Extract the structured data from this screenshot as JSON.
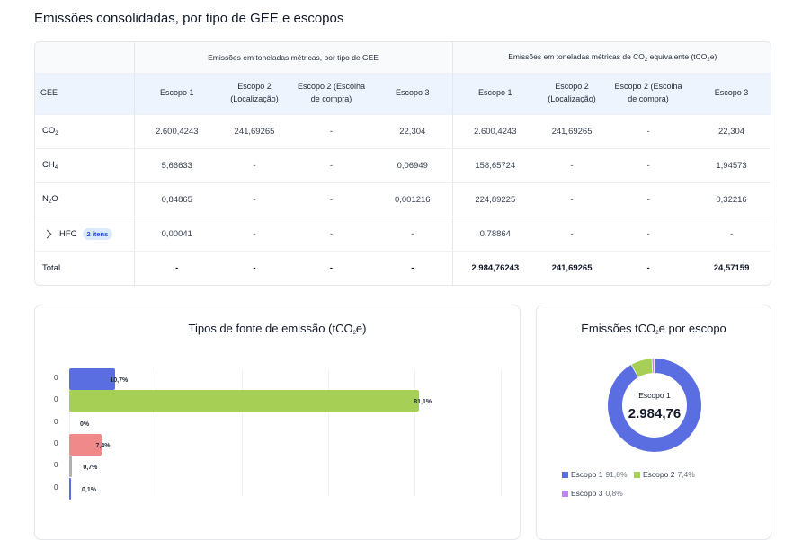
{
  "page_title": "Emissões consolidadas, por tipo de GEE e escopos",
  "table": {
    "group1_title": "Emissões em toneladas métricas, por tipo de GEE",
    "group2_title_a": "Emissões em toneladas métricas de CO",
    "group2_title_sub": "2",
    "group2_title_b": " equivalente (tCO",
    "group2_title_sub2": "2",
    "group2_title_c": "e)",
    "gee_header": "GEE",
    "headers": {
      "escopo1": "Escopo 1",
      "escopo2_loc_a": "Escopo 2",
      "escopo2_loc_b": "(Localização)",
      "escopo2_comp_a": "Escopo 2 (Escolha",
      "escopo2_comp_b": "de compra)",
      "escopo3": "Escopo 3"
    },
    "rows": [
      {
        "gas": "CO",
        "sub": "2",
        "tail": "",
        "v": [
          "2.600,4243",
          "241,69265",
          "-",
          "22,304",
          "2.600,4243",
          "241,69265",
          "-",
          "22,304"
        ]
      },
      {
        "gas": "CH",
        "sub": "4",
        "tail": "",
        "v": [
          "5,66633",
          "-",
          "-",
          "0,06949",
          "158,65724",
          "-",
          "-",
          "1,94573"
        ]
      },
      {
        "gas": "N",
        "sub": "2",
        "tail": "O",
        "v": [
          "0,84865",
          "-",
          "-",
          "0,001216",
          "224,89225",
          "-",
          "-",
          "0,32216"
        ]
      }
    ],
    "hfc": {
      "label": "HFC",
      "badge": "2 itens",
      "v": [
        "0,00041",
        "-",
        "-",
        "-",
        "0,78864",
        "-",
        "-",
        "-"
      ]
    },
    "total": {
      "label": "Total",
      "v": [
        "-",
        "-",
        "-",
        "-",
        "2.984,76243",
        "241,69265",
        "-",
        "24,57159"
      ]
    }
  },
  "bar_chart": {
    "title_a": "Tipos de fonte de emissão (tCO",
    "title_sub": "2",
    "title_b": "e)",
    "bars": [
      {
        "ylabel": "0",
        "pct_label": "10,7%",
        "value": 10.7,
        "color": "#5b6ee1"
      },
      {
        "ylabel": "0",
        "pct_label": "81,1%",
        "value": 81.1,
        "color": "#a6d055"
      },
      {
        "ylabel": "0",
        "pct_label": "0%",
        "value": 0,
        "color": "#e4572e"
      },
      {
        "ylabel": "0",
        "pct_label": "7,4%",
        "value": 7.4,
        "color": "#f08a8a"
      },
      {
        "ylabel": "0",
        "pct_label": "0,7%",
        "value": 0.7,
        "color": "#b0b0b0"
      },
      {
        "ylabel": "0",
        "pct_label": "0,1%",
        "value": 0.1,
        "color": "#5b6ee1"
      }
    ]
  },
  "donut": {
    "title_a": "Emissões tCO",
    "title_sub": "2",
    "title_b": "e por escopo",
    "center_label": "Escopo 1",
    "center_value": "2.984,76",
    "slices": [
      {
        "name": "Escopo 1",
        "pct_label": "91,8%",
        "value": 91.8,
        "color": "#5b6ee1"
      },
      {
        "name": "Escopo 2",
        "pct_label": "7,4%",
        "value": 7.4,
        "color": "#a6d055"
      },
      {
        "name": "Escopo 3",
        "pct_label": "0,8%",
        "value": 0.8,
        "color": "#c084fc"
      }
    ]
  }
}
